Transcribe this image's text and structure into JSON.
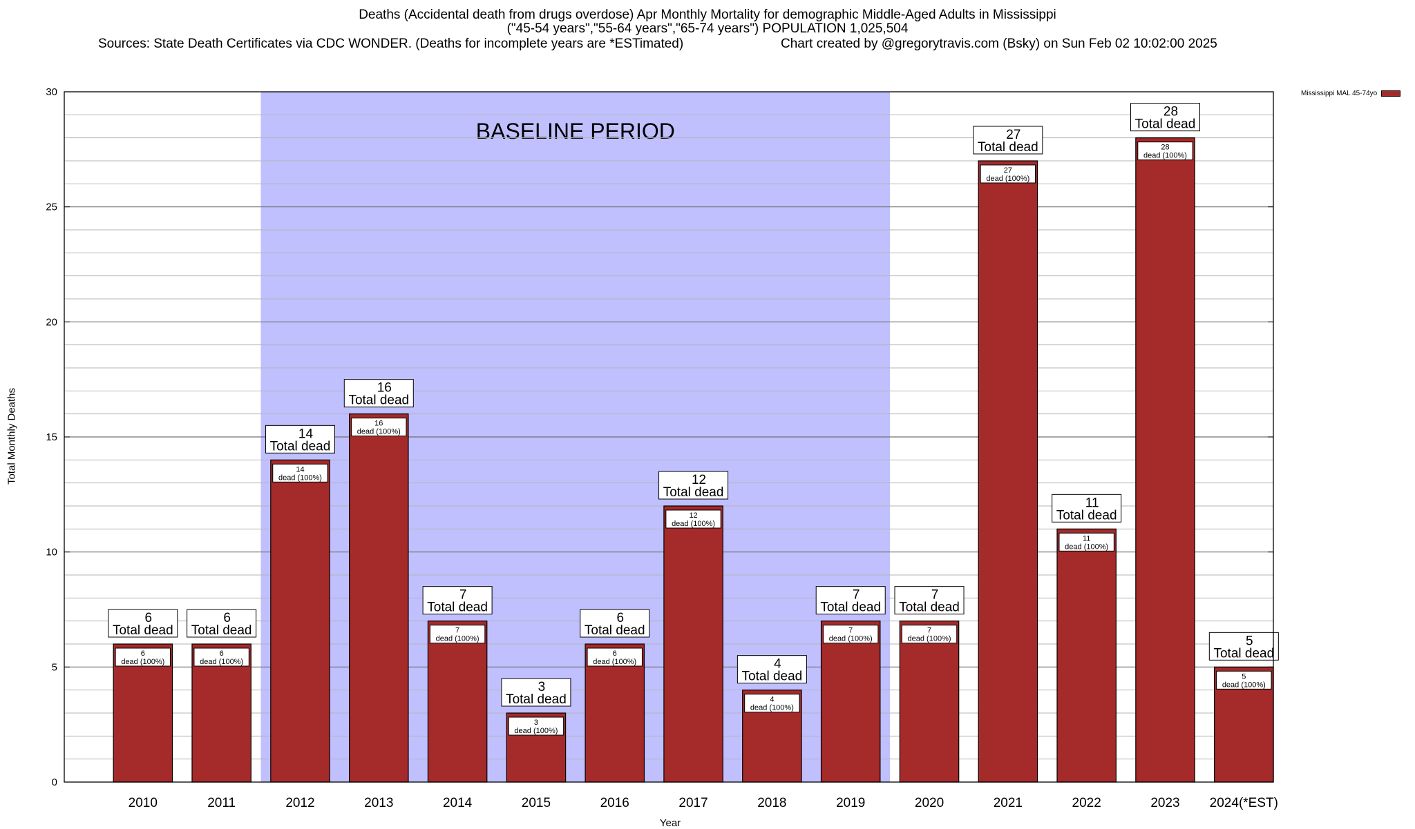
{
  "title": {
    "line1": "Deaths (Accidental death from drugs overdose) Apr Monthly Mortality for demographic Middle-Aged Adults in Mississippi",
    "line2": "(\"45-54 years\",\"55-64 years\",\"65-74 years\") POPULATION 1,025,504",
    "line3_left": "Sources: State Death Certificates via CDC WONDER. (Deaths for incomplete years are *ESTimated)",
    "line3_right": "Chart created by @gregorytravis.com (Bsky) on Sun Feb 02 10:02:00 2025"
  },
  "legend": {
    "label": "Mississippi MAL 45-74yo",
    "color": "#a52a2a"
  },
  "chart_data": {
    "type": "bar",
    "title": "Deaths (Accidental death from drugs overdose) Apr Monthly Mortality for demographic Middle-Aged Adults in Mississippi",
    "xlabel": "Year",
    "ylabel": "Total Monthly Deaths",
    "ylim": [
      0,
      30
    ],
    "yticks": [
      0,
      5,
      10,
      15,
      20,
      25,
      30
    ],
    "grid": true,
    "legend_position": "top-right",
    "categories": [
      "2010",
      "2011",
      "2012",
      "2013",
      "2014",
      "2015",
      "2016",
      "2017",
      "2018",
      "2019",
      "2020",
      "2021",
      "2022",
      "2023",
      "2024(*EST)"
    ],
    "series": [
      {
        "name": "Mississippi MAL 45-74yo",
        "values": [
          6,
          6,
          14,
          16,
          7,
          3,
          6,
          12,
          4,
          7,
          7,
          27,
          11,
          28,
          5
        ],
        "color": "#a52a2a"
      }
    ],
    "baseline": {
      "label": "BASELINE PERIOD",
      "from": "2012",
      "to": "2019",
      "color": "#c0c0ff"
    },
    "top_label_text": "Total dead",
    "inner_label_text": "dead (100%)"
  }
}
